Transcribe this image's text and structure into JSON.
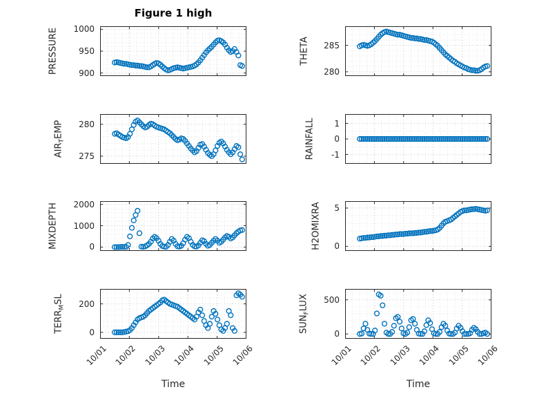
{
  "figure": {
    "title": "Figure 1 high"
  },
  "chart_data": {
    "type": "scatter",
    "title": "Figure 1 high",
    "xlabel": "Time",
    "x_tick_labels": [
      "10/01",
      "10/02",
      "10/03",
      "10/04",
      "10/05",
      "10/06"
    ],
    "xlim": [
      0,
      5
    ],
    "marker": {
      "shape": "open-circle",
      "color": "#0072BD",
      "radius": 3.4
    },
    "grid": "minor-dotted",
    "t": [
      0.5,
      0.565,
      0.63,
      0.695,
      0.76,
      0.825,
      0.89,
      0.955,
      1.02,
      1.085,
      1.15,
      1.215,
      1.28,
      1.345,
      1.41,
      1.475,
      1.54,
      1.605,
      1.67,
      1.735,
      1.8,
      1.865,
      1.93,
      1.995,
      2.06,
      2.125,
      2.19,
      2.255,
      2.32,
      2.385,
      2.45,
      2.515,
      2.58,
      2.645,
      2.71,
      2.775,
      2.84,
      2.905,
      2.97,
      3.035,
      3.1,
      3.165,
      3.23,
      3.295,
      3.36,
      3.425,
      3.49,
      3.555,
      3.62,
      3.685,
      3.75,
      3.815,
      3.88,
      3.945,
      4.01,
      4.075,
      4.14,
      4.205,
      4.27,
      4.335,
      4.4,
      4.465,
      4.53,
      4.595,
      4.66,
      4.725,
      4.79,
      4.855
    ],
    "subplots": [
      {
        "name": "PRESSURE",
        "label": {
          "pre": "PRESSURE",
          "sub": "",
          "post": ""
        },
        "row": 0,
        "col": 0,
        "ylim": [
          893,
          1007
        ],
        "yticks": [
          900,
          950,
          1000
        ],
        "values": [
          924,
          925,
          924,
          923,
          922,
          921,
          921,
          920,
          919,
          918,
          918,
          917,
          917,
          916,
          916,
          915,
          914,
          913,
          913,
          915,
          918,
          921,
          923,
          922,
          919,
          915,
          911,
          908,
          906,
          907,
          909,
          911,
          912,
          913,
          912,
          911,
          910,
          911,
          912,
          913,
          914,
          915,
          917,
          920,
          924,
          929,
          935,
          941,
          947,
          952,
          956,
          960,
          965,
          970,
          974,
          975,
          973,
          970,
          965,
          958,
          952,
          948,
          950,
          955,
          948,
          940,
          918,
          916
        ]
      },
      {
        "name": "THETA",
        "label": {
          "pre": "THETA",
          "sub": "",
          "post": ""
        },
        "row": 0,
        "col": 1,
        "ylim": [
          279.2,
          288.6
        ],
        "yticks": [
          280,
          285
        ],
        "values": [
          284.8,
          285.0,
          285.1,
          285.0,
          284.9,
          285.0,
          285.2,
          285.5,
          285.8,
          286.2,
          286.6,
          287.0,
          287.3,
          287.5,
          287.6,
          287.5,
          287.4,
          287.3,
          287.2,
          287.1,
          287.0,
          287.0,
          286.9,
          286.8,
          286.7,
          286.6,
          286.5,
          286.4,
          286.4,
          286.3,
          286.3,
          286.2,
          286.2,
          286.1,
          286.0,
          286.0,
          285.9,
          285.8,
          285.7,
          285.5,
          285.2,
          284.9,
          284.5,
          284.1,
          283.7,
          283.3,
          283.0,
          282.7,
          282.4,
          282.1,
          281.9,
          281.6,
          281.4,
          281.2,
          281.0,
          280.8,
          280.7,
          280.5,
          280.4,
          280.3,
          280.3,
          280.2,
          280.2,
          280.3,
          280.5,
          280.8,
          281.0,
          281.1
        ]
      },
      {
        "name": "AIR_TEMP",
        "label": {
          "pre": "AIR",
          "sub": "T",
          "post": "EMP"
        },
        "row": 1,
        "col": 0,
        "ylim": [
          273.8,
          281.6
        ],
        "yticks": [
          275,
          280
        ],
        "values": [
          278.5,
          278.6,
          278.4,
          278.2,
          278.0,
          277.9,
          277.8,
          278.0,
          278.5,
          279.2,
          279.9,
          280.4,
          280.6,
          280.3,
          280.0,
          279.7,
          279.5,
          279.6,
          279.9,
          280.1,
          280.0,
          279.8,
          279.6,
          279.5,
          279.4,
          279.3,
          279.2,
          279.0,
          278.8,
          278.6,
          278.3,
          278.0,
          277.7,
          277.5,
          277.6,
          277.8,
          277.7,
          277.4,
          277.0,
          276.6,
          276.2,
          275.9,
          275.6,
          275.8,
          276.3,
          276.8,
          276.9,
          276.5,
          276.0,
          275.5,
          275.2,
          275.0,
          275.3,
          275.9,
          276.6,
          277.1,
          277.3,
          277.0,
          276.5,
          276.0,
          275.6,
          275.3,
          275.6,
          276.1,
          276.6,
          276.4,
          275.3,
          274.5
        ]
      },
      {
        "name": "RAINFALL",
        "label": {
          "pre": "RAINFALL",
          "sub": "",
          "post": ""
        },
        "row": 1,
        "col": 1,
        "ylim": [
          -1.6,
          1.6
        ],
        "yticks": [
          -1,
          0,
          1
        ],
        "values": [
          0,
          0,
          0,
          0,
          0,
          0,
          0,
          0,
          0,
          0,
          0,
          0,
          0,
          0,
          0,
          0,
          0,
          0,
          0,
          0,
          0,
          0,
          0,
          0,
          0,
          0,
          0,
          0,
          0,
          0,
          0,
          0,
          0,
          0,
          0,
          0,
          0,
          0,
          0,
          0,
          0,
          0,
          0,
          0,
          0,
          0,
          0,
          0,
          0,
          0,
          0,
          0,
          0,
          0,
          0,
          0,
          0,
          0,
          0,
          0,
          0,
          0,
          0,
          0,
          0,
          0,
          0,
          0
        ]
      },
      {
        "name": "MIXDEPTH",
        "label": {
          "pre": "MIXDEPTH",
          "sub": "",
          "post": ""
        },
        "row": 2,
        "col": 0,
        "ylim": [
          -180,
          2150
        ],
        "yticks": [
          0,
          1000,
          2000
        ],
        "values": [
          0,
          0,
          0,
          5,
          10,
          8,
          6,
          100,
          500,
          900,
          1250,
          1500,
          1700,
          650,
          20,
          10,
          30,
          80,
          150,
          250,
          400,
          480,
          420,
          300,
          150,
          50,
          20,
          10,
          100,
          250,
          380,
          300,
          150,
          40,
          20,
          60,
          180,
          350,
          480,
          420,
          250,
          100,
          30,
          20,
          80,
          200,
          320,
          280,
          150,
          60,
          100,
          200,
          300,
          380,
          300,
          200,
          250,
          350,
          450,
          520,
          480,
          400,
          450,
          550,
          650,
          720,
          780,
          800
        ]
      },
      {
        "name": "H2OMIXRA",
        "label": {
          "pre": "H2OMIXRA",
          "sub": "",
          "post": ""
        },
        "row": 2,
        "col": 1,
        "ylim": [
          -0.6,
          5.9
        ],
        "yticks": [
          0,
          5
        ],
        "values": [
          1.0,
          1.05,
          1.1,
          1.1,
          1.15,
          1.15,
          1.2,
          1.2,
          1.25,
          1.3,
          1.3,
          1.35,
          1.35,
          1.4,
          1.4,
          1.45,
          1.45,
          1.5,
          1.5,
          1.55,
          1.55,
          1.6,
          1.6,
          1.6,
          1.65,
          1.65,
          1.7,
          1.7,
          1.7,
          1.75,
          1.75,
          1.8,
          1.8,
          1.85,
          1.9,
          1.9,
          1.95,
          2.0,
          2.0,
          2.05,
          2.1,
          2.2,
          2.4,
          2.7,
          3.0,
          3.2,
          3.3,
          3.4,
          3.5,
          3.7,
          3.9,
          4.1,
          4.3,
          4.5,
          4.6,
          4.7,
          4.7,
          4.75,
          4.8,
          4.85,
          4.85,
          4.9,
          4.85,
          4.8,
          4.75,
          4.7,
          4.65,
          4.7
        ]
      },
      {
        "name": "TERR_MSL",
        "label": {
          "pre": "TERR",
          "sub": "M",
          "post": "SL"
        },
        "row": 3,
        "col": 0,
        "ylim": [
          -45,
          305
        ],
        "yticks": [
          0,
          200
        ],
        "values": [
          0,
          0,
          0,
          0,
          0,
          2,
          5,
          8,
          15,
          30,
          50,
          70,
          90,
          100,
          105,
          110,
          120,
          135,
          150,
          160,
          170,
          180,
          190,
          200,
          210,
          225,
          230,
          220,
          210,
          200,
          195,
          190,
          185,
          180,
          170,
          160,
          150,
          140,
          130,
          120,
          110,
          100,
          90,
          110,
          140,
          160,
          120,
          80,
          50,
          30,
          60,
          110,
          150,
          130,
          90,
          50,
          20,
          10,
          30,
          60,
          150,
          120,
          30,
          10,
          260,
          275,
          265,
          250
        ]
      },
      {
        "name": "SUN_FLUX",
        "label": {
          "pre": "SUN",
          "sub": "F",
          "post": "LUX"
        },
        "row": 3,
        "col": 1,
        "ylim": [
          -70,
          660
        ],
        "yticks": [
          0,
          500
        ],
        "values": [
          0,
          5,
          80,
          150,
          60,
          5,
          0,
          0,
          50,
          300,
          580,
          560,
          420,
          150,
          20,
          0,
          0,
          30,
          120,
          230,
          250,
          180,
          80,
          10,
          0,
          20,
          100,
          200,
          220,
          150,
          60,
          5,
          0,
          0,
          40,
          130,
          200,
          160,
          70,
          10,
          0,
          0,
          30,
          100,
          150,
          120,
          50,
          5,
          0,
          0,
          20,
          80,
          120,
          90,
          40,
          0,
          0,
          0,
          10,
          60,
          90,
          70,
          30,
          0,
          0,
          10,
          20,
          0
        ]
      }
    ]
  }
}
